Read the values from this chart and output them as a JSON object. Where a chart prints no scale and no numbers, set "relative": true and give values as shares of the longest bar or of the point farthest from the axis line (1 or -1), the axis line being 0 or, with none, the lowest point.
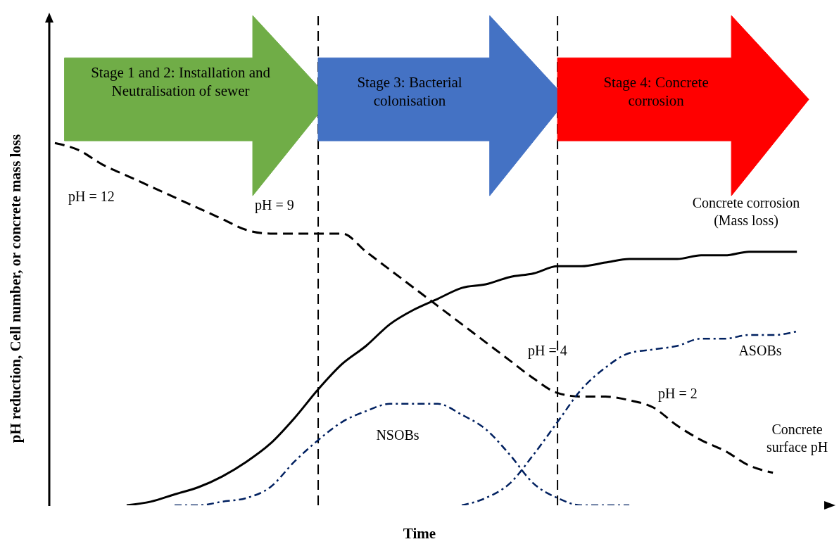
{
  "chart_data": {
    "type": "line",
    "relative": true,
    "xlabel": "Time",
    "ylabel": "pH reduction, Cell number, or concrete mass loss",
    "categories": [
      null,
      null,
      null,
      null,
      null,
      null,
      null,
      null,
      null,
      null,
      null,
      null,
      null,
      null,
      null,
      null,
      null,
      null,
      null,
      null,
      null,
      null,
      null,
      null,
      null,
      null,
      null,
      null,
      null,
      null,
      null,
      null
    ],
    "series": [
      {
        "name": "Concrete surface pH",
        "color": "#000000",
        "line_style": "dashed",
        "values": [
          1.0,
          0.98,
          0.94,
          0.91,
          0.88,
          0.85,
          0.82,
          0.79,
          0.76,
          0.75,
          0.75,
          0.75,
          0.75,
          0.7,
          0.65,
          0.6,
          0.55,
          0.5,
          0.45,
          0.4,
          0.35,
          0.31,
          0.3,
          0.3,
          0.29,
          0.27,
          0.22,
          0.18,
          0.15,
          0.11,
          0.09,
          null
        ]
      },
      {
        "name": "Concrete corrosion (Mass loss)",
        "color": "#000000",
        "line_style": "solid",
        "values": [
          null,
          null,
          null,
          0.0,
          0.01,
          0.03,
          0.05,
          0.08,
          0.12,
          0.17,
          0.24,
          0.32,
          0.39,
          0.44,
          0.5,
          0.54,
          0.57,
          0.6,
          0.61,
          0.63,
          0.64,
          0.66,
          0.66,
          0.67,
          0.68,
          0.68,
          0.68,
          0.69,
          0.69,
          0.7,
          0.7,
          0.7
        ]
      },
      {
        "name": "NSOBs",
        "color": "#002060",
        "line_style": "dashdot",
        "values": [
          null,
          null,
          null,
          null,
          null,
          0.0,
          0.0,
          0.01,
          0.02,
          0.05,
          0.12,
          0.18,
          0.23,
          0.26,
          0.28,
          0.28,
          0.28,
          0.25,
          0.21,
          0.14,
          0.06,
          0.02,
          0.0,
          0.0,
          0.0,
          null,
          null,
          null,
          null,
          null,
          null,
          null
        ]
      },
      {
        "name": "ASOBs",
        "color": "#002060",
        "line_style": "dashdot",
        "values": [
          null,
          null,
          null,
          null,
          null,
          null,
          null,
          null,
          null,
          null,
          null,
          null,
          null,
          null,
          null,
          null,
          null,
          0.0,
          0.02,
          0.06,
          0.14,
          0.23,
          0.32,
          0.38,
          0.42,
          0.43,
          0.44,
          0.46,
          0.46,
          0.47,
          0.47,
          0.48
        ]
      }
    ],
    "annotations": [
      "Stage 1 and 2: Installation and Neutralisation of sewer",
      "Stage 3: Bacterial colonisation",
      "Stage 4: Concrete corrosion",
      "pH = 12",
      "pH = 9",
      "pH = 4",
      "pH = 2"
    ]
  }
}
